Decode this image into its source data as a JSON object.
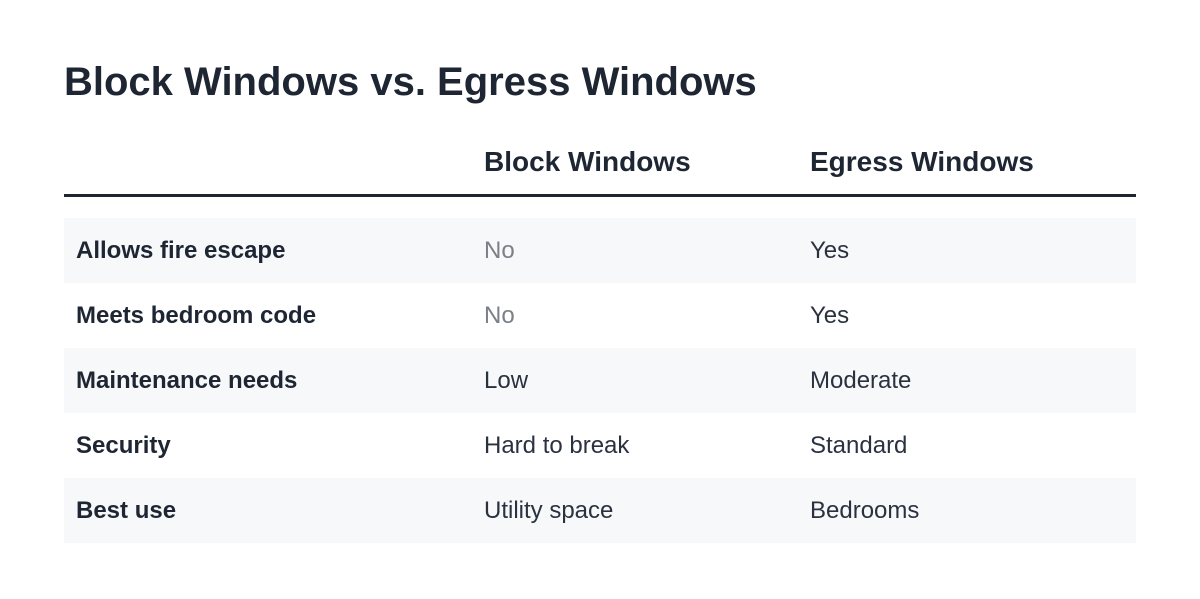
{
  "title": "Block Windows vs. Egress Windows",
  "table": {
    "columns": [
      "",
      "Block Windows",
      "Egress Windows"
    ],
    "rows": [
      {
        "label": "Allows fire escape",
        "block": "No",
        "egress": "Yes"
      },
      {
        "label": "Meets bedroom code",
        "block": "No",
        "egress": "Yes"
      },
      {
        "label": "Maintenance needs",
        "block": "Low",
        "egress": "Moderate"
      },
      {
        "label": "Security",
        "block": "Hard to break",
        "egress": "Standard"
      },
      {
        "label": "Best use",
        "block": "Utility space",
        "egress": "Bedrooms"
      }
    ]
  },
  "colors": {
    "text": "#1e2633",
    "muted": "#7b8088",
    "row_shade": "#f7f8fa",
    "rule": "#1e2633"
  }
}
